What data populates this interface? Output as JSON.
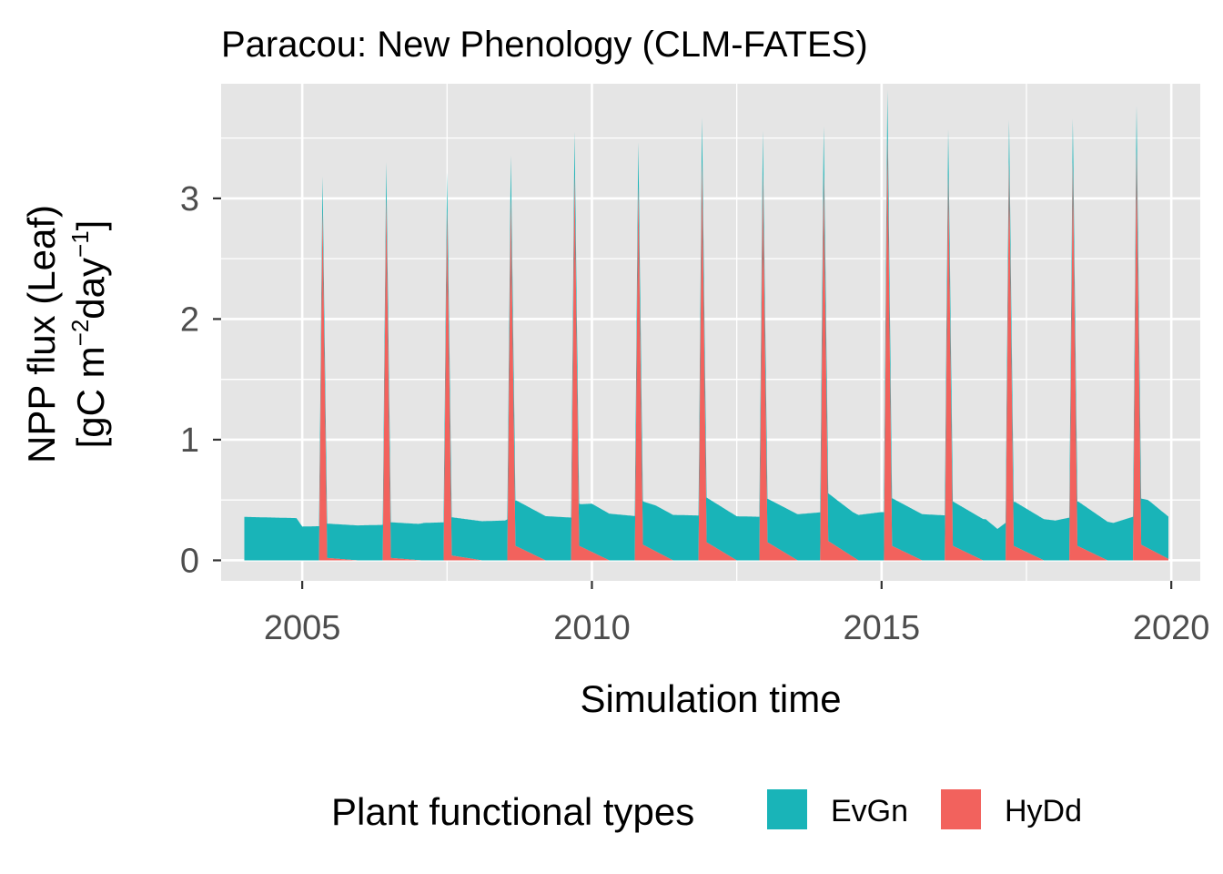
{
  "chart_data": {
    "type": "area",
    "stacked": true,
    "title": "Paracou: New Phenology (CLM-FATES)",
    "xlabel": "Simulation time",
    "ylabel_line1": "NPP flux (Leaf)",
    "ylabel_line2": {
      "prefix": "[gC m",
      "sup1": "−2",
      "middle": "day",
      "sup2": "−1",
      "suffix": "]"
    },
    "xlim": [
      2003.6,
      2020.5
    ],
    "ylim": [
      -0.17,
      3.95
    ],
    "x_ticks": [
      2005,
      2010,
      2015,
      2020
    ],
    "x_tick_labels": [
      "2005",
      "2010",
      "2015",
      "2020"
    ],
    "y_ticks": [
      0,
      1,
      2,
      3
    ],
    "y_tick_labels": [
      "0",
      "1",
      "2",
      "3"
    ],
    "grid": true,
    "panel_background": "#e5e5e5",
    "legend": {
      "title": "Plant functional types",
      "position": "bottom",
      "entries": [
        {
          "label": "EvGn",
          "color": "#19b4b8"
        },
        {
          "label": "HyDd",
          "color": "#f2625d"
        }
      ]
    },
    "evgn_baseline": {
      "x": [
        2004.0,
        2004.9,
        2005.0,
        2007.0,
        2007.1,
        2008.5,
        2008.7,
        2009.8,
        2010.0,
        2010.9,
        2011.1,
        2012.0,
        2013.0,
        2014.0,
        2014.5,
        2015.0,
        2016.2,
        2016.8,
        2017.0,
        2017.3,
        2018.0,
        2018.4,
        2019.0,
        2019.6,
        2019.95
      ],
      "y": [
        0.36,
        0.35,
        0.28,
        0.3,
        0.31,
        0.33,
        0.38,
        0.35,
        0.4,
        0.36,
        0.38,
        0.37,
        0.36,
        0.4,
        0.37,
        0.4,
        0.37,
        0.34,
        0.26,
        0.37,
        0.33,
        0.37,
        0.31,
        0.4,
        0.35
      ]
    },
    "spikes": [
      {
        "year": 2005.35,
        "peak_total": 3.05,
        "hydd_peak": 2.9,
        "hydd_tail": 0.02
      },
      {
        "year": 2006.45,
        "peak_total": 3.3,
        "hydd_peak": 3.0,
        "hydd_tail": 0.02
      },
      {
        "year": 2007.5,
        "peak_total": 3.2,
        "hydd_peak": 2.9,
        "hydd_tail": 0.04
      },
      {
        "year": 2008.6,
        "peak_total": 3.3,
        "hydd_peak": 3.0,
        "hydd_tail": 0.12
      },
      {
        "year": 2009.7,
        "peak_total": 3.5,
        "hydd_peak": 3.2,
        "hydd_tail": 0.12
      },
      {
        "year": 2010.8,
        "peak_total": 3.4,
        "hydd_peak": 3.1,
        "hydd_tail": 0.13
      },
      {
        "year": 2011.9,
        "peak_total": 3.65,
        "hydd_peak": 3.3,
        "hydd_tail": 0.15
      },
      {
        "year": 2012.95,
        "peak_total": 3.55,
        "hydd_peak": 3.2,
        "hydd_tail": 0.15
      },
      {
        "year": 2014.0,
        "peak_total": 3.5,
        "hydd_peak": 3.2,
        "hydd_tail": 0.16
      },
      {
        "year": 2015.1,
        "peak_total": 3.8,
        "hydd_peak": 3.5,
        "hydd_tail": 0.12
      },
      {
        "year": 2016.15,
        "peak_total": 3.55,
        "hydd_peak": 3.2,
        "hydd_tail": 0.12
      },
      {
        "year": 2017.2,
        "peak_total": 3.65,
        "hydd_peak": 3.3,
        "hydd_tail": 0.12
      },
      {
        "year": 2018.3,
        "peak_total": 3.6,
        "hydd_peak": 3.3,
        "hydd_tail": 0.12
      },
      {
        "year": 2019.4,
        "peak_total": 3.7,
        "hydd_peak": 3.4,
        "hydd_tail": 0.13
      }
    ]
  }
}
